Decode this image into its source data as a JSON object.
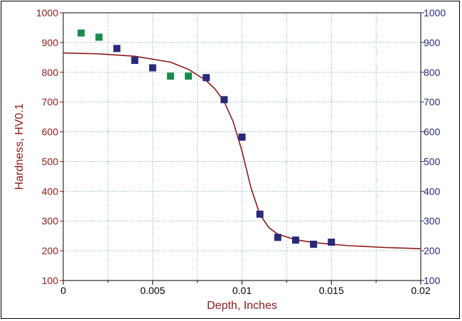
{
  "chart_data": {
    "type": "scatter",
    "title": "",
    "xlabel": "Depth, Inches",
    "ylabel": "Hardness, HV0.1",
    "xlim": [
      0,
      0.02
    ],
    "ylim": [
      100,
      1000
    ],
    "x_ticks": [
      0,
      0.005,
      0.01,
      0.015,
      0.02
    ],
    "x_tick_labels": [
      "0",
      "0.005",
      "0.01",
      "0.015",
      "0.02"
    ],
    "y_ticks": [
      100,
      200,
      300,
      400,
      500,
      600,
      700,
      800,
      900,
      1000
    ],
    "y_tick_labels": [
      "100",
      "200",
      "300",
      "400",
      "500",
      "600",
      "700",
      "800",
      "900",
      "1000"
    ],
    "grid": true,
    "series": [
      {
        "kind": "scatter",
        "color": "#1a8a4e",
        "points": [
          {
            "x": 0.001,
            "y": 932
          },
          {
            "x": 0.002,
            "y": 918
          },
          {
            "x": 0.006,
            "y": 787
          },
          {
            "x": 0.007,
            "y": 787
          }
        ]
      },
      {
        "kind": "scatter",
        "color": "#2a2a7a",
        "points": [
          {
            "x": 0.003,
            "y": 880
          },
          {
            "x": 0.004,
            "y": 840
          },
          {
            "x": 0.005,
            "y": 815
          },
          {
            "x": 0.008,
            "y": 782
          },
          {
            "x": 0.009,
            "y": 708
          },
          {
            "x": 0.01,
            "y": 582
          },
          {
            "x": 0.011,
            "y": 323
          },
          {
            "x": 0.012,
            "y": 245
          },
          {
            "x": 0.013,
            "y": 236
          },
          {
            "x": 0.014,
            "y": 222
          },
          {
            "x": 0.015,
            "y": 229
          }
        ]
      },
      {
        "kind": "line",
        "color": "#8b1a1a",
        "points": [
          {
            "x": 0.0,
            "y": 865
          },
          {
            "x": 0.002,
            "y": 862
          },
          {
            "x": 0.004,
            "y": 854
          },
          {
            "x": 0.006,
            "y": 834
          },
          {
            "x": 0.007,
            "y": 810
          },
          {
            "x": 0.008,
            "y": 772
          },
          {
            "x": 0.0085,
            "y": 743
          },
          {
            "x": 0.009,
            "y": 702
          },
          {
            "x": 0.0095,
            "y": 635
          },
          {
            "x": 0.01,
            "y": 535
          },
          {
            "x": 0.0105,
            "y": 412
          },
          {
            "x": 0.011,
            "y": 322
          },
          {
            "x": 0.0115,
            "y": 278
          },
          {
            "x": 0.012,
            "y": 256
          },
          {
            "x": 0.013,
            "y": 237
          },
          {
            "x": 0.014,
            "y": 228
          },
          {
            "x": 0.015,
            "y": 222
          },
          {
            "x": 0.016,
            "y": 217
          },
          {
            "x": 0.017,
            "y": 214
          },
          {
            "x": 0.018,
            "y": 211
          },
          {
            "x": 0.019,
            "y": 209
          },
          {
            "x": 0.02,
            "y": 207
          }
        ]
      }
    ],
    "colors": {
      "left_axis": "#8b1a1a",
      "right_axis": "#2a2a7a",
      "grid": "#7fa7a7",
      "x_axis_text": "#000000",
      "xlabel": "#8b1a1a"
    }
  }
}
